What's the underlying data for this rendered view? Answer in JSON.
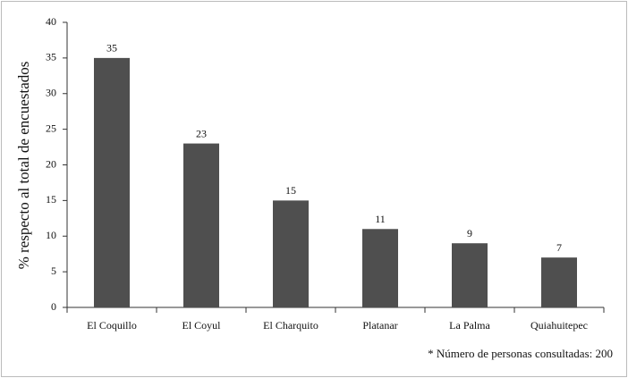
{
  "chart_data": {
    "type": "bar",
    "y_label": "% respecto al total de encuestados",
    "categories": [
      "El Coquillo",
      "El Coyul",
      "El Charquito",
      "Platanar",
      "La Palma",
      "Quiahuitepec"
    ],
    "values": [
      35,
      23,
      15,
      11,
      9,
      7
    ],
    "color": "#4f4f4f",
    "ylim": [
      0,
      40
    ],
    "yticks": [
      0,
      5,
      10,
      15,
      20,
      25,
      30,
      35,
      40
    ],
    "grid": false,
    "note": "* Número de personas consultadas: 200"
  }
}
